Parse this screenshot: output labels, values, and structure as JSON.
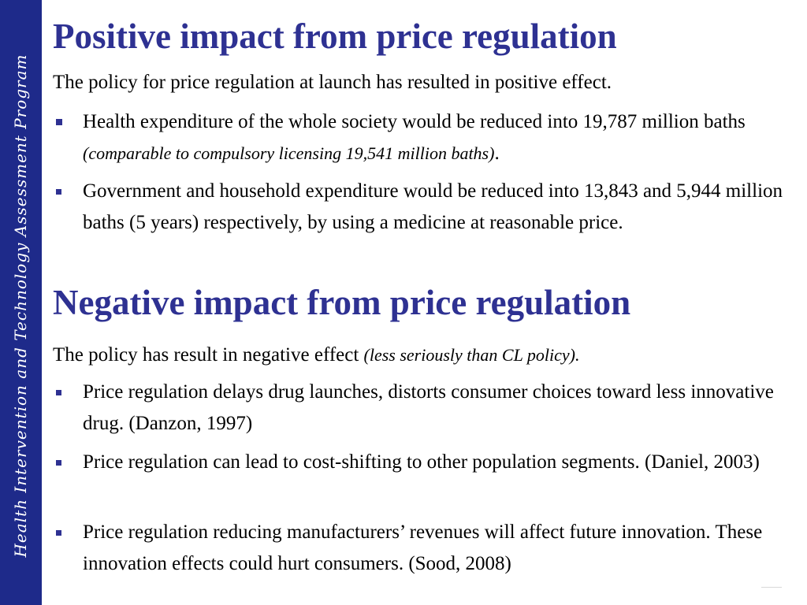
{
  "sidebar": {
    "program_name": "Health Intervention and Technology Assessment Program",
    "color": "#1e2a8a"
  },
  "positive": {
    "title": "Positive impact from price regulation",
    "intro": "The policy for price regulation at launch has resulted in positive effect.",
    "bullets": [
      {
        "text": "Health expenditure of the whole society would be reduced into 19,787 million baths ",
        "note": "(comparable to compulsory licensing 19,541 million baths)",
        "tail": "."
      },
      {
        "text": "Government and household expenditure would be reduced into 13,843 and 5,944 million baths (5 years) respectively, by using a medicine at reasonable price."
      }
    ]
  },
  "negative": {
    "title": "Negative impact from price regulation",
    "intro": "The policy has result in negative effect ",
    "intro_note": "(less seriously than CL policy).",
    "bullets": [
      {
        "text": "Price regulation delays drug launches, distorts consumer choices toward less innovative drug. (Danzon, 1997)"
      },
      {
        "text": "Price regulation can lead to cost-shifting to other population segments. (Daniel, 2003)"
      },
      {
        "text": "Price regulation reducing manufacturers’ revenues will affect future innovation. These innovation effects could hurt consumers. (Sood, 2008)"
      }
    ]
  },
  "theme": {
    "heading_color": "#2e3192",
    "bullet_color": "#2e3192"
  }
}
